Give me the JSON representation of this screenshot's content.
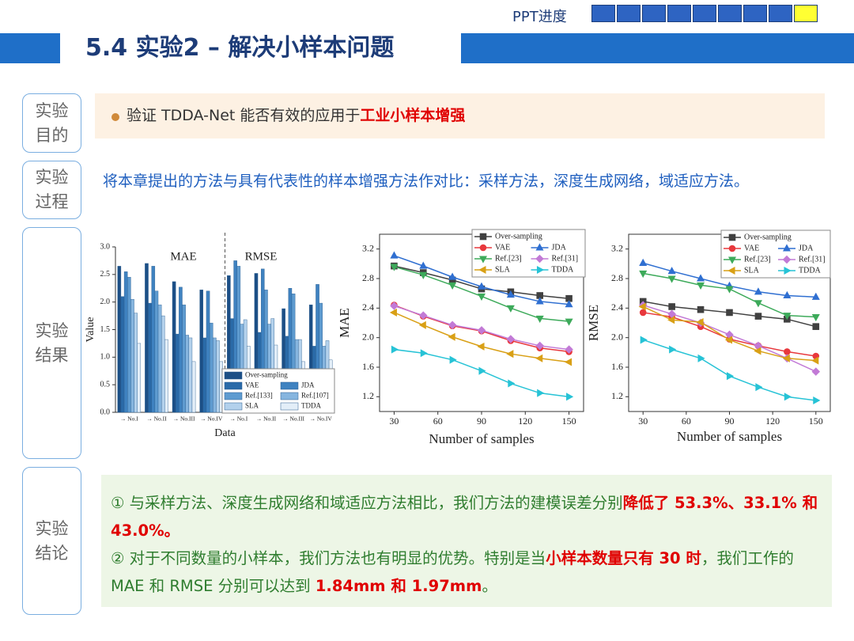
{
  "header": {
    "progress_label": "PPT进度",
    "title": "5.4 实验2 – 解决小样本问题"
  },
  "sections": [
    {
      "label": [
        "实验",
        "目的"
      ],
      "paragraphs": [
        [
          {
            "text": "验证 TDDA-Net 能否有效的应用于"
          },
          {
            "text": "工业小样本增强",
            "highlight": true
          }
        ]
      ]
    },
    {
      "label": [
        "实验",
        "过程"
      ],
      "paragraphs": [
        [
          {
            "text": "将本章提出的方法与具有代表性的样本增强方法作对比：采样方法，深度生成网络，域适应方法。"
          }
        ]
      ]
    },
    {
      "label": [
        "实验",
        "结果"
      ]
    },
    {
      "label": [
        "实验",
        "结论"
      ],
      "paragraphs": [
        [
          {
            "text": "① 与采样方法、深度生成网络和域适应方法相比，我们方法的建模误差分别"
          },
          {
            "text": "降低了 53.3%、33.1% 和 43.0%。",
            "highlight": true
          }
        ],
        [
          {
            "text": "② 对于不同数量的小样本，我们方法也有明显的优势。特别是当"
          },
          {
            "text": "小样本数量只有 30 时",
            "highlight": true
          },
          {
            "text": "，我们工作的 MAE 和 RMSE 分别可以达到 "
          },
          {
            "text": "1.84mm 和 1.97mm",
            "highlight": true
          },
          {
            "text": "。"
          }
        ]
      ]
    }
  ],
  "chart_data": [
    {
      "type": "bar",
      "panels": [
        "MAE",
        "RMSE"
      ],
      "categories": [
        "→ No.I",
        "→ No.II",
        "→ No.III",
        "→ No.IV",
        "→ No.I",
        "→ No.II",
        "→ No.III",
        "→ No.IV"
      ],
      "xlabel": "Data",
      "ylabel": "Value",
      "ylim": [
        0,
        3
      ],
      "yticks": [
        {
          "value": 0,
          "label": "0.0"
        },
        0.5,
        {
          "value": 1,
          "label": "1.0"
        },
        1.5,
        {
          "value": 2,
          "label": "2.0"
        },
        2.5,
        {
          "value": 3,
          "label": "3.0"
        }
      ],
      "series": [
        {
          "name": "Over-sampling",
          "color": "#1c4f86",
          "values": [
            2.65,
            2.7,
            2.37,
            2.22,
            2.48,
            2.52,
            1.88,
            1.95
          ]
        },
        {
          "name": "VAE",
          "color": "#2a6aa8",
          "values": [
            2.1,
            1.98,
            1.42,
            1.35,
            1.7,
            1.45,
            1.38,
            1.2
          ]
        },
        {
          "name": "JDA",
          "color": "#3f82c0",
          "values": [
            2.55,
            2.65,
            2.27,
            2.2,
            2.75,
            2.6,
            2.25,
            2.32
          ]
        },
        {
          "name": "Ref.[133]",
          "color": "#5e9bd0",
          "values": [
            2.45,
            2.2,
            1.95,
            1.62,
            2.65,
            2.22,
            2.15,
            1.98
          ]
        },
        {
          "name": "Ref.[107]",
          "color": "#86b5df",
          "values": [
            2.05,
            1.95,
            1.4,
            1.35,
            1.6,
            1.6,
            1.32,
            1.2
          ]
        },
        {
          "name": "SLA",
          "color": "#b3d1ec",
          "values": [
            1.8,
            1.75,
            1.35,
            1.3,
            1.68,
            1.7,
            1.32,
            1.3
          ]
        },
        {
          "name": "TDDA",
          "color": "#e3eef8",
          "values": [
            1.25,
            1.32,
            0.92,
            0.92,
            1.2,
            1.22,
            0.92,
            0.95
          ]
        }
      ]
    },
    {
      "type": "line",
      "xlabel": "Number of samples",
      "ylabel": "MAE",
      "x": [
        30,
        50,
        70,
        90,
        110,
        130,
        150
      ],
      "xlim": [
        20,
        160
      ],
      "xticks": [
        30,
        60,
        90,
        120,
        150
      ],
      "ylim": [
        1.0,
        3.4
      ],
      "yticks": [
        1.2,
        1.6,
        {
          "value": 2,
          "label": "2.0"
        },
        2.4,
        2.8,
        3.2
      ],
      "series": [
        {
          "name": "Over-sampling",
          "color": "#404040",
          "marker": "square",
          "values": [
            2.97,
            2.88,
            2.78,
            2.66,
            2.62,
            2.57,
            2.53
          ]
        },
        {
          "name": "VAE",
          "color": "#e8383d",
          "marker": "circle",
          "values": [
            2.44,
            2.29,
            2.16,
            2.09,
            1.96,
            1.86,
            1.81
          ]
        },
        {
          "name": "JDA",
          "color": "#2f6fd1",
          "marker": "triangle-up",
          "values": [
            3.11,
            2.97,
            2.82,
            2.69,
            2.58,
            2.49,
            2.45
          ]
        },
        {
          "name": "Ref.[23]",
          "color": "#3daa5a",
          "marker": "triangle-down",
          "values": [
            2.96,
            2.85,
            2.71,
            2.56,
            2.4,
            2.26,
            2.22
          ]
        },
        {
          "name": "Ref.[31]",
          "color": "#c27ad6",
          "marker": "diamond",
          "values": [
            2.43,
            2.3,
            2.17,
            2.1,
            1.98,
            1.89,
            1.84
          ]
        },
        {
          "name": "SLA",
          "color": "#d9a016",
          "marker": "triangle-left",
          "values": [
            2.34,
            2.17,
            2.01,
            1.88,
            1.78,
            1.72,
            1.67
          ]
        },
        {
          "name": "TDDA",
          "color": "#27c3d6",
          "marker": "triangle-right",
          "values": [
            1.84,
            1.79,
            1.7,
            1.55,
            1.38,
            1.25,
            1.2
          ]
        }
      ]
    },
    {
      "type": "line",
      "xlabel": "Number of samples",
      "ylabel": "RMSE",
      "x": [
        30,
        50,
        70,
        90,
        110,
        130,
        150
      ],
      "xlim": [
        20,
        160
      ],
      "xticks": [
        30,
        60,
        90,
        120,
        150
      ],
      "ylim": [
        1.0,
        3.4
      ],
      "yticks": [
        1.2,
        1.6,
        {
          "value": 2,
          "label": "2.0"
        },
        2.4,
        2.8,
        3.2
      ],
      "series": [
        {
          "name": "Over-sampling",
          "color": "#404040",
          "marker": "square",
          "values": [
            2.49,
            2.42,
            2.38,
            2.34,
            2.29,
            2.25,
            2.15
          ]
        },
        {
          "name": "VAE",
          "color": "#e8383d",
          "marker": "circle",
          "values": [
            2.34,
            2.28,
            2.15,
            1.98,
            1.89,
            1.81,
            1.75
          ]
        },
        {
          "name": "JDA",
          "color": "#2f6fd1",
          "marker": "triangle-up",
          "values": [
            3.01,
            2.9,
            2.8,
            2.7,
            2.62,
            2.57,
            2.55
          ]
        },
        {
          "name": "Ref.[23]",
          "color": "#3daa5a",
          "marker": "triangle-down",
          "values": [
            2.87,
            2.8,
            2.71,
            2.66,
            2.47,
            2.3,
            2.28
          ]
        },
        {
          "name": "Ref.[31]",
          "color": "#c27ad6",
          "marker": "diamond",
          "values": [
            2.44,
            2.32,
            2.2,
            2.04,
            1.89,
            1.72,
            1.54
          ]
        },
        {
          "name": "SLA",
          "color": "#d9a016",
          "marker": "triangle-left",
          "values": [
            2.42,
            2.24,
            2.21,
            1.97,
            1.82,
            1.72,
            1.69
          ]
        },
        {
          "name": "TDDA",
          "color": "#27c3d6",
          "marker": "triangle-right",
          "values": [
            1.97,
            1.84,
            1.72,
            1.48,
            1.33,
            1.2,
            1.15
          ]
        }
      ]
    }
  ]
}
